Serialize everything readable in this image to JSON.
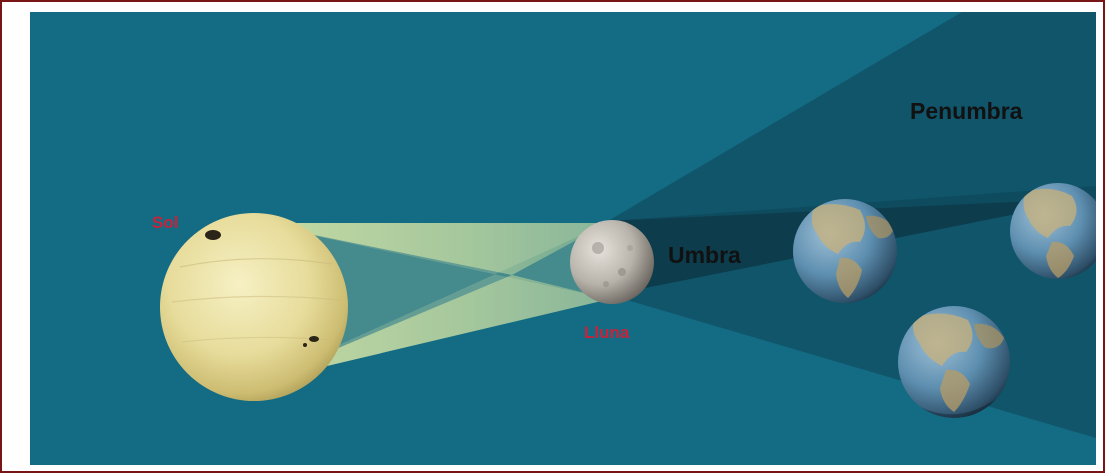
{
  "labels": {
    "sun": "Sol",
    "moon": "Lluna",
    "umbra": "Umbra",
    "penumbra": "Penumbra"
  },
  "colors": {
    "background": "#136b84",
    "border": "#7a1515",
    "sun_label": "#c8233a",
    "moon_label": "#c8233a",
    "region_label": "#111111",
    "light_cone": "#e8f0a8"
  },
  "icons": {
    "sun": "sun-sphere-icon",
    "moon": "moon-sphere-icon",
    "earth": "earth-globe-icon"
  }
}
